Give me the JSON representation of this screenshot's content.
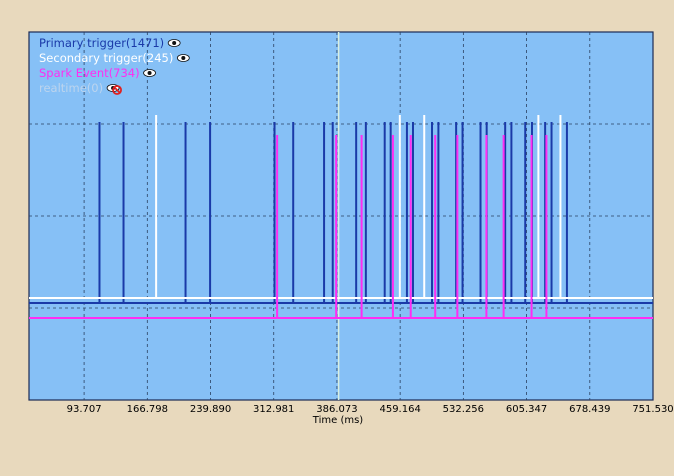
{
  "chart_data": {
    "type": "line",
    "subtype": "digital-timing-trace",
    "xlabel": "Time (ms)",
    "xlim": [
      30,
      751.53
    ],
    "x_ticks": [
      93.707,
      166.798,
      239.89,
      312.981,
      386.073,
      459.164,
      532.256,
      605.347,
      678.439,
      751.53
    ],
    "x_tick_labels": [
      "93.707",
      "166.798",
      "239.890",
      "312.981",
      "386.073",
      "459.164",
      "532.256",
      "605.347",
      "678.439",
      "751.530"
    ],
    "grid": true,
    "cursor_x": 388,
    "legend_position": "top-left",
    "legend": [
      {
        "label": "Primary trigger(1471)",
        "color": "#1a3aa8",
        "icon": "eye-icon"
      },
      {
        "label": "Secondary trigger(245)",
        "color": "#ffffff",
        "icon": "eye-icon"
      },
      {
        "label": "Spark Event(734)",
        "color": "#ff2df2",
        "icon": "eye-icon"
      },
      {
        "label": "realtime(0)",
        "color": "#bcd4ee",
        "icon": "eye-hidden-icon"
      }
    ],
    "series": [
      {
        "name": "Primary trigger",
        "color": "#1a3aa8",
        "pulse_times": [
          111.5,
          139.3,
          211,
          239.4,
          313.9,
          335.5,
          371.2,
          381.2,
          408.3,
          419.5,
          441.3,
          448.2,
          467,
          474,
          496,
          503.4,
          523.9,
          531.3,
          552.1,
          559.2,
          580.6,
          587.8,
          603.8,
          611.6,
          626.8,
          634.2,
          652
        ]
      },
      {
        "name": "Secondary trigger",
        "color": "#ffffff",
        "pulse_times": [
          177,
          458.8,
          487,
          619,
          644.5
        ]
      },
      {
        "name": "Spark Event",
        "color": "#ff2df2",
        "pulse_times": [
          316.9,
          385.2,
          414.6,
          450.8,
          471.4,
          499.7,
          525.3,
          558.9,
          578.8,
          611.1,
          628.3
        ]
      }
    ]
  }
}
